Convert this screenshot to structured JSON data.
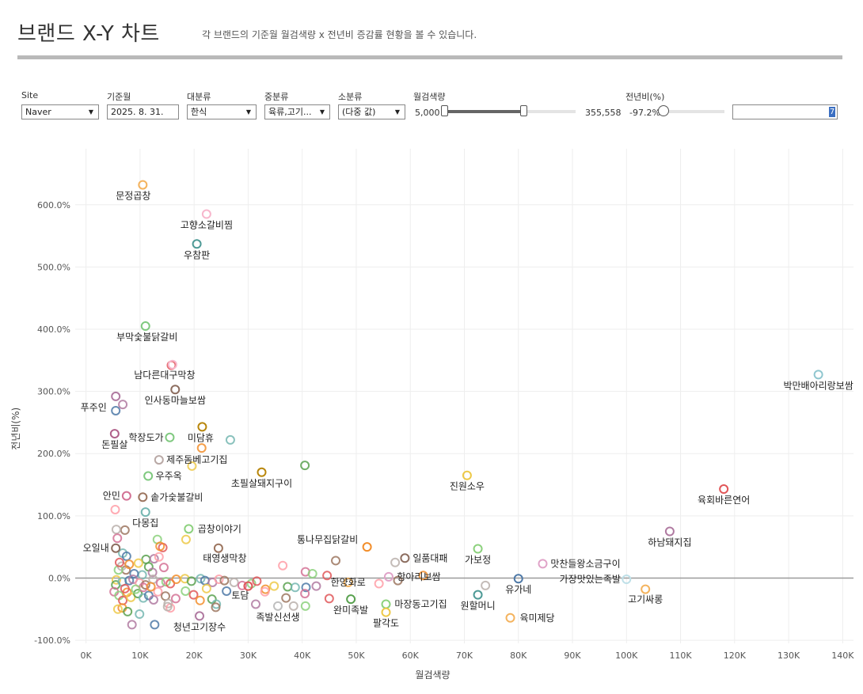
{
  "header": {
    "title": "브랜드 X-Y 차트",
    "subtitle": "각 브랜드의 기준월 월검색량 x 전년비 증감률 현황을 볼 수 있습니다."
  },
  "filters": {
    "site": {
      "label": "Site",
      "value": "Naver"
    },
    "month": {
      "label": "기준월",
      "value": "2025. 8. 31."
    },
    "major": {
      "label": "대분류",
      "value": "한식"
    },
    "middle": {
      "label": "중분류",
      "value": "육류,고기..."
    },
    "minor": {
      "label": "소분류",
      "value": "(다중 값)"
    },
    "search_volume": {
      "label": "월검색량",
      "min": "5,000",
      "max": "355,558",
      "low_fraction": 0.0,
      "high_fraction": 0.6
    },
    "yoy": {
      "label": "전년비(%)",
      "min": "-97.2%",
      "input_value": "7",
      "low_fraction": 0.0
    }
  },
  "colors": {
    "zero_line": "#9a9a9a",
    "grid": "#eeeeee",
    "palette": [
      "#e15759",
      "#f28e2b",
      "#edc948",
      "#59a14f",
      "#76b7b2",
      "#4e79a7",
      "#b07aa1",
      "#ff9da7",
      "#9c755f",
      "#bab0ac",
      "#d37295",
      "#8cd17d"
    ]
  },
  "chart_data": {
    "type": "scatter",
    "title": "",
    "xlabel": "월검색량",
    "ylabel": "전년비(%)",
    "xlim": [
      -2000,
      142000
    ],
    "ylim": [
      -105,
      690
    ],
    "x_ticks": [
      0,
      10000,
      20000,
      30000,
      40000,
      50000,
      60000,
      70000,
      80000,
      90000,
      100000,
      110000,
      120000,
      130000,
      140000
    ],
    "x_tick_labels": [
      "0K",
      "10K",
      "20K",
      "30K",
      "40K",
      "50K",
      "60K",
      "70K",
      "80K",
      "90K",
      "100K",
      "110K",
      "120K",
      "130K",
      "140K"
    ],
    "y_ticks": [
      -100,
      0,
      100,
      200,
      300,
      400,
      500,
      600
    ],
    "y_tick_labels": [
      "-100.0%",
      "0.0%",
      "100.0%",
      "200.0%",
      "300.0%",
      "400.0%",
      "500.0%",
      "600.0%"
    ],
    "grid": true,
    "labeled_points": [
      {
        "name": "문정곱창",
        "x": 10500,
        "y": 632,
        "color": "#f4b35e",
        "lx": -12,
        "ly": 18
      },
      {
        "name": "고향소갈비찜",
        "x": 22300,
        "y": 585,
        "color": "#f7b6cc",
        "lx": 0,
        "ly": 18
      },
      {
        "name": "우참판",
        "x": 20500,
        "y": 537,
        "color": "#4e9a96",
        "lx": 0,
        "ly": 18
      },
      {
        "name": "부막숯불닭갈비",
        "x": 11000,
        "y": 405,
        "color": "#7fc97f",
        "lx": 2,
        "ly": 18
      },
      {
        "name": "남다른대구막창",
        "x": 16000,
        "y": 343,
        "color": "#f7b6cc",
        "lx": -10,
        "ly": 17
      },
      {
        "name": "박만배아리랑보쌈",
        "x": 135500,
        "y": 327,
        "color": "#8fc6cf",
        "lx": 0,
        "ly": 18
      },
      {
        "name": "인사동마늘보쌈",
        "x": 16500,
        "y": 303,
        "color": "#8c6d5f",
        "lx": 0,
        "ly": 18
      },
      {
        "name": "푸주인",
        "x": 5500,
        "y": 292,
        "color": "#b07aa1",
        "lx": -28,
        "ly": 18
      },
      {
        "name": "미담휴",
        "x": 21500,
        "y": 243,
        "color": "#b8860b",
        "lx": -2,
        "ly": 18
      },
      {
        "name": "학장도가",
        "x": 15500,
        "y": 226,
        "color": "#7fc97f",
        "lx": -30,
        "ly": 0
      },
      {
        "name": "돈필살",
        "x": 5300,
        "y": 232,
        "color": "#b0608a",
        "lx": 0,
        "ly": 18
      },
      {
        "name": "제주돔베고기집",
        "x": 13500,
        "y": 190,
        "color": "#b9a9a6",
        "lx": 48,
        "ly": 0
      },
      {
        "name": "초필살돼지구이",
        "x": 32500,
        "y": 170,
        "color": "#b8860b",
        "lx": 0,
        "ly": 18
      },
      {
        "name": "우주옥",
        "x": 11500,
        "y": 164,
        "color": "#7fc97f",
        "lx": 26,
        "ly": 0
      },
      {
        "name": "진원소우",
        "x": 70500,
        "y": 165,
        "color": "#edc948",
        "lx": 0,
        "ly": 18
      },
      {
        "name": "육회바른연어",
        "x": 118000,
        "y": 143,
        "color": "#e15759",
        "lx": 0,
        "ly": 18
      },
      {
        "name": "안민",
        "x": 7500,
        "y": 132,
        "color": "#d37295",
        "lx": -19,
        "ly": 0
      },
      {
        "name": "솥가숯불갈비",
        "x": 10500,
        "y": 130,
        "color": "#9c755f",
        "lx": 43,
        "ly": 0
      },
      {
        "name": "다몽집",
        "x": 11000,
        "y": 106,
        "color": "#76b7b2",
        "lx": 0,
        "ly": 18
      },
      {
        "name": "곱창이야기",
        "x": 19000,
        "y": 79,
        "color": "#8cd17d",
        "lx": 39,
        "ly": 0
      },
      {
        "name": "하남돼지집",
        "x": 108000,
        "y": 75,
        "color": "#b07aa1",
        "lx": 0,
        "ly": 18
      },
      {
        "name": "오일내",
        "x": 5500,
        "y": 48,
        "color": "#8c6d5f",
        "lx": -25,
        "ly": 0
      },
      {
        "name": "통나무집닭갈비",
        "x": 52000,
        "y": 50,
        "color": "#f28e2b",
        "lx": -50,
        "ly": -5
      },
      {
        "name": "태영생막창",
        "x": 24500,
        "y": 48,
        "color": "#9c755f",
        "lx": 8,
        "ly": 17
      },
      {
        "name": "일품대패",
        "x": 59000,
        "y": 32,
        "color": "#8c6d5f",
        "lx": 32,
        "ly": 0
      },
      {
        "name": "가보정",
        "x": 72500,
        "y": 47,
        "color": "#8cd17d",
        "lx": 0,
        "ly": 18
      },
      {
        "name": "맛찬들왕소금구이",
        "x": 84500,
        "y": 23,
        "color": "#e0a3c8",
        "lx": 54,
        "ly": 0
      },
      {
        "name": "항아리보쌈",
        "x": 56000,
        "y": 2,
        "color": "#e0a3c8",
        "lx": 38,
        "ly": 0
      },
      {
        "name": "가장맛있는족발",
        "x": 100000,
        "y": -2,
        "color": "#bfe0e8",
        "lx": -46,
        "ly": 0
      },
      {
        "name": "한양화로",
        "x": 48500,
        "y": -7,
        "color": "#f4b35e",
        "lx": 0,
        "ly": 0
      },
      {
        "name": "유가네",
        "x": 80000,
        "y": -1,
        "color": "#4e79a7",
        "lx": 0,
        "ly": 18
      },
      {
        "name": "토담",
        "x": 30000,
        "y": -13,
        "color": "#e15759",
        "lx": -10,
        "ly": 16
      },
      {
        "name": "고기싸롱",
        "x": 103500,
        "y": -18,
        "color": "#f4b35e",
        "lx": 0,
        "ly": 17
      },
      {
        "name": "마장동고기집",
        "x": 55500,
        "y": -42,
        "color": "#8cd17d",
        "lx": 44,
        "ly": 0
      },
      {
        "name": "원할머니",
        "x": 72500,
        "y": -27,
        "color": "#4e9a96",
        "lx": 0,
        "ly": 18
      },
      {
        "name": "완미족발",
        "x": 49000,
        "y": -34,
        "color": "#59a14f",
        "lx": 0,
        "ly": 18
      },
      {
        "name": "족발신선생",
        "x": 35500,
        "y": -45,
        "color": "#c0c0c0",
        "lx": 0,
        "ly": 18
      },
      {
        "name": "육미제당",
        "x": 78500,
        "y": -64,
        "color": "#f4b35e",
        "lx": 34,
        "ly": 0
      },
      {
        "name": "팔각도",
        "x": 55500,
        "y": -55,
        "color": "#edc948",
        "lx": 0,
        "ly": 18
      },
      {
        "name": "청년고기장수",
        "x": 21000,
        "y": -61,
        "color": "#b07aa1",
        "lx": 0,
        "ly": 18
      }
    ],
    "unlabeled_points": [
      [
        15800,
        342
      ],
      [
        21400,
        209
      ],
      [
        19600,
        180
      ],
      [
        40500,
        181
      ],
      [
        26700,
        222
      ],
      [
        5500,
        269
      ],
      [
        6800,
        279
      ],
      [
        5400,
        110
      ],
      [
        7200,
        77
      ],
      [
        5600,
        78
      ],
      [
        5800,
        64
      ],
      [
        13200,
        62
      ],
      [
        14200,
        49
      ],
      [
        13700,
        51
      ],
      [
        18500,
        62
      ],
      [
        11100,
        30
      ],
      [
        6800,
        40
      ],
      [
        7500,
        35
      ],
      [
        12600,
        31
      ],
      [
        13500,
        34
      ],
      [
        7400,
        13
      ],
      [
        6600,
        19
      ],
      [
        14400,
        17
      ],
      [
        6000,
        13
      ],
      [
        6200,
        25
      ],
      [
        8000,
        22
      ],
      [
        9700,
        24
      ],
      [
        11600,
        18
      ],
      [
        10400,
        5
      ],
      [
        8900,
        7
      ],
      [
        12300,
        9
      ],
      [
        36400,
        20
      ],
      [
        46200,
        28
      ],
      [
        57200,
        25
      ],
      [
        40600,
        10
      ],
      [
        41900,
        7
      ],
      [
        44600,
        4
      ],
      [
        62400,
        4
      ],
      [
        5600,
        -3
      ],
      [
        5500,
        -11
      ],
      [
        6700,
        -6
      ],
      [
        8000,
        -4
      ],
      [
        8700,
        -2
      ],
      [
        9900,
        -8
      ],
      [
        11000,
        -11
      ],
      [
        12400,
        -2
      ],
      [
        13800,
        -8
      ],
      [
        14800,
        -6
      ],
      [
        15600,
        -9
      ],
      [
        16700,
        -2
      ],
      [
        18300,
        -1
      ],
      [
        19500,
        -5
      ],
      [
        21200,
        -1
      ],
      [
        22000,
        -4
      ],
      [
        23400,
        -7
      ],
      [
        24600,
        -2
      ],
      [
        25600,
        -4
      ],
      [
        27400,
        -7
      ],
      [
        28900,
        -12
      ],
      [
        30600,
        -9
      ],
      [
        31600,
        -5
      ],
      [
        33200,
        -18
      ],
      [
        34800,
        -13
      ],
      [
        37300,
        -14
      ],
      [
        38700,
        -15
      ],
      [
        40700,
        -15
      ],
      [
        42600,
        -13
      ],
      [
        54200,
        -9
      ],
      [
        57700,
        -4
      ],
      [
        73900,
        -12
      ],
      [
        5200,
        -22
      ],
      [
        6100,
        -28
      ],
      [
        6800,
        -36
      ],
      [
        7600,
        -23
      ],
      [
        8300,
        -31
      ],
      [
        9600,
        -25
      ],
      [
        10600,
        -32
      ],
      [
        11600,
        -28
      ],
      [
        12500,
        -35
      ],
      [
        13300,
        -22
      ],
      [
        14700,
        -29
      ],
      [
        15200,
        -41
      ],
      [
        16600,
        -33
      ],
      [
        18400,
        -21
      ],
      [
        19900,
        -27
      ],
      [
        21100,
        -36
      ],
      [
        22300,
        -17
      ],
      [
        23300,
        -34
      ],
      [
        24100,
        -42
      ],
      [
        26000,
        -21
      ],
      [
        31400,
        -42
      ],
      [
        33100,
        -22
      ],
      [
        37000,
        -32
      ],
      [
        38400,
        -45
      ],
      [
        40500,
        -25
      ],
      [
        40600,
        -45
      ],
      [
        45000,
        -33
      ],
      [
        6700,
        -48
      ],
      [
        5900,
        -50
      ],
      [
        7700,
        -54
      ],
      [
        9900,
        -58
      ],
      [
        12700,
        -75
      ],
      [
        8500,
        -75
      ],
      [
        15600,
        -48
      ],
      [
        24000,
        -47
      ],
      [
        15100,
        -46
      ],
      [
        10600,
        -15
      ],
      [
        9200,
        -18
      ],
      [
        7200,
        -17
      ],
      [
        12000,
        -14
      ]
    ]
  }
}
